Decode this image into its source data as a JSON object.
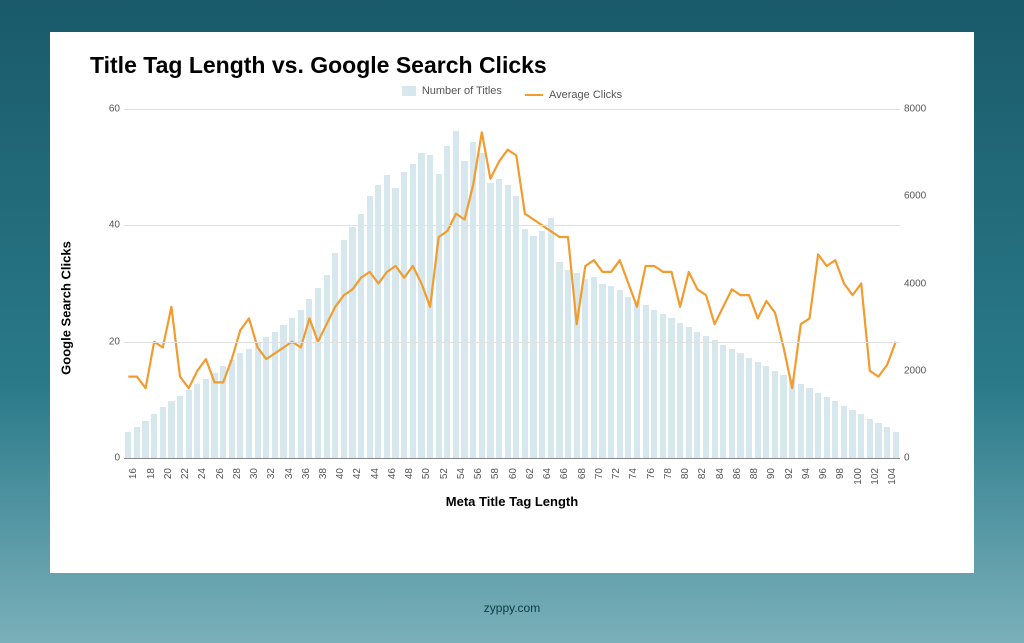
{
  "page": {
    "background_gradient": [
      "#1a5a6a",
      "#2a7a8a",
      "#7ab0ba"
    ],
    "card_background": "#ffffff"
  },
  "chart": {
    "type": "bar+line",
    "title": "Title Tag Length vs. Google Search Clicks",
    "title_fontsize": 23,
    "title_fontweight": "bold",
    "legend": {
      "items": [
        {
          "label": "Number of Titles",
          "kind": "bar",
          "color": "#d6e8ed"
        },
        {
          "label": "Average Clicks",
          "kind": "line",
          "color": "#f29b2e"
        }
      ],
      "fontsize": 11
    },
    "xlabel": "Meta Title Tag Length",
    "ylabel_left": "Google Search Clicks",
    "label_fontsize": 13,
    "x_values": [
      16,
      17,
      18,
      19,
      20,
      21,
      22,
      23,
      24,
      25,
      26,
      27,
      28,
      29,
      30,
      31,
      32,
      33,
      34,
      35,
      36,
      37,
      38,
      39,
      40,
      41,
      42,
      43,
      44,
      45,
      46,
      47,
      48,
      49,
      50,
      51,
      52,
      53,
      54,
      55,
      56,
      57,
      58,
      59,
      60,
      61,
      62,
      63,
      64,
      65,
      66,
      67,
      68,
      69,
      70,
      71,
      72,
      73,
      74,
      75,
      76,
      77,
      78,
      79,
      80,
      81,
      82,
      83,
      84,
      85,
      86,
      87,
      88,
      89,
      90,
      91,
      92,
      93,
      94,
      95,
      96,
      97,
      98,
      99,
      100,
      101,
      102,
      103,
      104,
      105
    ],
    "x_tick_step": 2,
    "x_tick_rotation": -90,
    "x_tick_fontsize": 10,
    "bar_series": {
      "name": "Number of Titles",
      "color": "#d6e8ed",
      "bar_width": 0.72,
      "y_axis": "right",
      "values": [
        600,
        700,
        850,
        1000,
        1180,
        1300,
        1420,
        1550,
        1700,
        1820,
        1950,
        2100,
        2250,
        2400,
        2500,
        2650,
        2780,
        2900,
        3050,
        3200,
        3400,
        3650,
        3900,
        4200,
        4700,
        5000,
        5300,
        5600,
        6000,
        6250,
        6480,
        6200,
        6550,
        6750,
        7000,
        6950,
        6500,
        7150,
        7500,
        6800,
        7250,
        7000,
        6300,
        6400,
        6250,
        6000,
        5260,
        5100,
        5200,
        5500,
        4500,
        4300,
        4250,
        4100,
        4150,
        4000,
        3950,
        3850,
        3700,
        3600,
        3500,
        3400,
        3300,
        3200,
        3100,
        3000,
        2900,
        2800,
        2700,
        2600,
        2500,
        2400,
        2300,
        2200,
        2100,
        2000,
        1900,
        1800,
        1700,
        1600,
        1500,
        1400,
        1300,
        1200,
        1100,
        1000,
        900,
        800,
        700,
        600
      ]
    },
    "line_series": {
      "name": "Average Clicks",
      "color": "#f29b2e",
      "line_width": 2.2,
      "y_axis": "left",
      "values": [
        14,
        14,
        12,
        20,
        19,
        26,
        14,
        12,
        15,
        17,
        13,
        13,
        17,
        22,
        24,
        19,
        17,
        18,
        19,
        20,
        19,
        24,
        20,
        23,
        26,
        28,
        29,
        31,
        32,
        30,
        32,
        33,
        31,
        33,
        30,
        26,
        38,
        39,
        42,
        41,
        47,
        56,
        48,
        51,
        53,
        52,
        42,
        41,
        40,
        39,
        38,
        38,
        23,
        33,
        34,
        32,
        32,
        34,
        30,
        26,
        33,
        33,
        32,
        32,
        26,
        32,
        29,
        28,
        23,
        26,
        29,
        28,
        28,
        24,
        27,
        25,
        19,
        12,
        23,
        24,
        35,
        33,
        34,
        30,
        28,
        30,
        15,
        14,
        16,
        20
      ]
    },
    "y_left": {
      "min": 0,
      "max": 60,
      "step": 20,
      "ticks": [
        0,
        20,
        40,
        60
      ]
    },
    "y_right": {
      "min": 0,
      "max": 8000,
      "step": 2000,
      "ticks": [
        0,
        2000,
        4000,
        6000,
        8000
      ]
    },
    "grid_color": "#e0e0e0",
    "axis_color": "#888888",
    "tick_color": "#555555"
  },
  "footer": {
    "text": "zyppy.com",
    "color": "#0d3a44",
    "fontsize": 12
  }
}
